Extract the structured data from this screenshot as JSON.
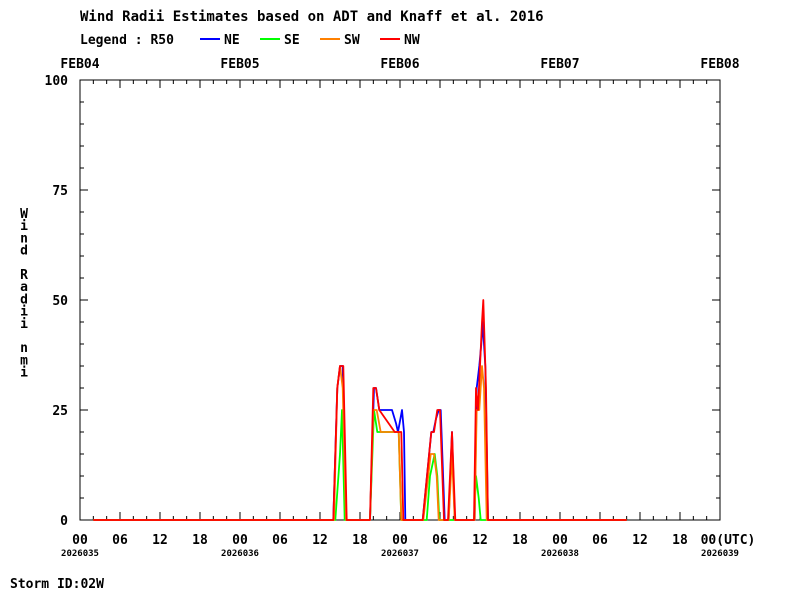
{
  "chart_data": {
    "type": "line",
    "title": "Wind Radii Estimates based on ADT and Knaff et al. 2016",
    "legend_prefix": "Legend : R50",
    "legend_position": "top-left",
    "ylabel_chars": [
      "W",
      "i",
      "n",
      "d",
      "",
      "R",
      "a",
      "d",
      "i",
      "i",
      "",
      "n",
      "m",
      "i"
    ],
    "xlabel_unit": "00(UTC)",
    "ylim": [
      0,
      100
    ],
    "xlim_hours": [
      0,
      96
    ],
    "y_ticks": [
      0,
      25,
      50,
      75,
      100
    ],
    "x_tick_labels": [
      {
        "hour": 0,
        "label": "00"
      },
      {
        "hour": 6,
        "label": "06"
      },
      {
        "hour": 12,
        "label": "12"
      },
      {
        "hour": 18,
        "label": "18"
      },
      {
        "hour": 24,
        "label": "00"
      },
      {
        "hour": 30,
        "label": "06"
      },
      {
        "hour": 36,
        "label": "12"
      },
      {
        "hour": 42,
        "label": "18"
      },
      {
        "hour": 48,
        "label": "00"
      },
      {
        "hour": 54,
        "label": "06"
      },
      {
        "hour": 60,
        "label": "12"
      },
      {
        "hour": 66,
        "label": "18"
      },
      {
        "hour": 72,
        "label": "00"
      },
      {
        "hour": 78,
        "label": "06"
      },
      {
        "hour": 84,
        "label": "12"
      },
      {
        "hour": 90,
        "label": "18"
      }
    ],
    "julian_labels": [
      {
        "hour": 0,
        "label": "2026035"
      },
      {
        "hour": 24,
        "label": "2026036"
      },
      {
        "hour": 48,
        "label": "2026037"
      },
      {
        "hour": 72,
        "label": "2026038"
      },
      {
        "hour": 96,
        "label": "2026039"
      }
    ],
    "date_labels": [
      {
        "hour": 0,
        "label": "FEB04"
      },
      {
        "hour": 24,
        "label": "FEB05"
      },
      {
        "hour": 48,
        "label": "FEB06"
      },
      {
        "hour": 72,
        "label": "FEB07"
      },
      {
        "hour": 96,
        "label": "FEB08"
      }
    ],
    "series": [
      {
        "name": "NE",
        "color": "#0000ff",
        "points": [
          [
            2,
            0
          ],
          [
            38,
            0
          ],
          [
            38.6,
            30
          ],
          [
            39,
            35
          ],
          [
            39.4,
            35
          ],
          [
            39.9,
            0
          ],
          [
            43.5,
            0
          ],
          [
            44.1,
            30
          ],
          [
            44.4,
            30
          ],
          [
            44.9,
            25
          ],
          [
            46.8,
            25
          ],
          [
            47.4,
            22
          ],
          [
            47.7,
            20
          ],
          [
            48.3,
            25
          ],
          [
            48.6,
            20
          ],
          [
            48.8,
            0
          ],
          [
            51.4,
            0
          ],
          [
            52.7,
            20
          ],
          [
            53,
            20
          ],
          [
            53.4,
            23
          ],
          [
            53.8,
            25
          ],
          [
            54.1,
            25
          ],
          [
            54.7,
            0
          ],
          [
            55.3,
            0
          ],
          [
            55.8,
            20
          ],
          [
            56.2,
            0
          ],
          [
            59.2,
            0
          ],
          [
            59.5,
            30
          ],
          [
            59.9,
            35
          ],
          [
            60.2,
            40
          ],
          [
            60.4,
            45
          ],
          [
            60.8,
            35
          ],
          [
            61.2,
            0
          ],
          [
            82,
            0
          ]
        ]
      },
      {
        "name": "SE",
        "color": "#00ff00",
        "points": [
          [
            2,
            0
          ],
          [
            38.3,
            0
          ],
          [
            39,
            15
          ],
          [
            39.3,
            25
          ],
          [
            39.7,
            0
          ],
          [
            43.5,
            0
          ],
          [
            44.1,
            25
          ],
          [
            44.6,
            20
          ],
          [
            45.1,
            20
          ],
          [
            47.3,
            20
          ],
          [
            47.8,
            20
          ],
          [
            48.2,
            0
          ],
          [
            52,
            0
          ],
          [
            52.5,
            10
          ],
          [
            53.2,
            15
          ],
          [
            53.6,
            10
          ],
          [
            53.9,
            0
          ],
          [
            59.1,
            0
          ],
          [
            59.4,
            10
          ],
          [
            59.8,
            5
          ],
          [
            60.1,
            0
          ],
          [
            82,
            0
          ]
        ]
      },
      {
        "name": "SW",
        "color": "#ff8000",
        "points": [
          [
            2,
            0
          ],
          [
            38.1,
            0
          ],
          [
            38.6,
            30
          ],
          [
            39,
            35
          ],
          [
            39.4,
            30
          ],
          [
            39.9,
            0
          ],
          [
            43.5,
            0
          ],
          [
            44,
            25
          ],
          [
            44.5,
            25
          ],
          [
            45.1,
            20
          ],
          [
            47.3,
            20
          ],
          [
            47.8,
            20
          ],
          [
            48.2,
            0
          ],
          [
            51.5,
            0
          ],
          [
            52.6,
            15
          ],
          [
            53.1,
            15
          ],
          [
            53.5,
            10
          ],
          [
            53.8,
            0
          ],
          [
            55.3,
            0
          ],
          [
            55.8,
            15
          ],
          [
            56.2,
            0
          ],
          [
            59.2,
            0
          ],
          [
            59.5,
            25
          ],
          [
            59.9,
            25
          ],
          [
            60.3,
            35
          ],
          [
            60.6,
            30
          ],
          [
            61,
            0
          ],
          [
            82,
            0
          ]
        ]
      },
      {
        "name": "NW",
        "color": "#ff0000",
        "points": [
          [
            2,
            0
          ],
          [
            38,
            0
          ],
          [
            38.6,
            30
          ],
          [
            39,
            35
          ],
          [
            39.5,
            35
          ],
          [
            40,
            0
          ],
          [
            43.5,
            0
          ],
          [
            44,
            30
          ],
          [
            44.4,
            30
          ],
          [
            44.9,
            25
          ],
          [
            47.2,
            20
          ],
          [
            47.6,
            20
          ],
          [
            48.2,
            20
          ],
          [
            48.5,
            0
          ],
          [
            51.4,
            0
          ],
          [
            52.7,
            20
          ],
          [
            53.1,
            20
          ],
          [
            53.6,
            25
          ],
          [
            54,
            25
          ],
          [
            54.6,
            0
          ],
          [
            55.2,
            0
          ],
          [
            55.8,
            20
          ],
          [
            56.3,
            0
          ],
          [
            59.1,
            0
          ],
          [
            59.4,
            30
          ],
          [
            59.7,
            25
          ],
          [
            60,
            35
          ],
          [
            60.3,
            45
          ],
          [
            60.5,
            50
          ],
          [
            60.9,
            30
          ],
          [
            61.2,
            0
          ],
          [
            82,
            0
          ]
        ]
      }
    ]
  },
  "footer": {
    "storm_id": "Storm ID:02W"
  }
}
